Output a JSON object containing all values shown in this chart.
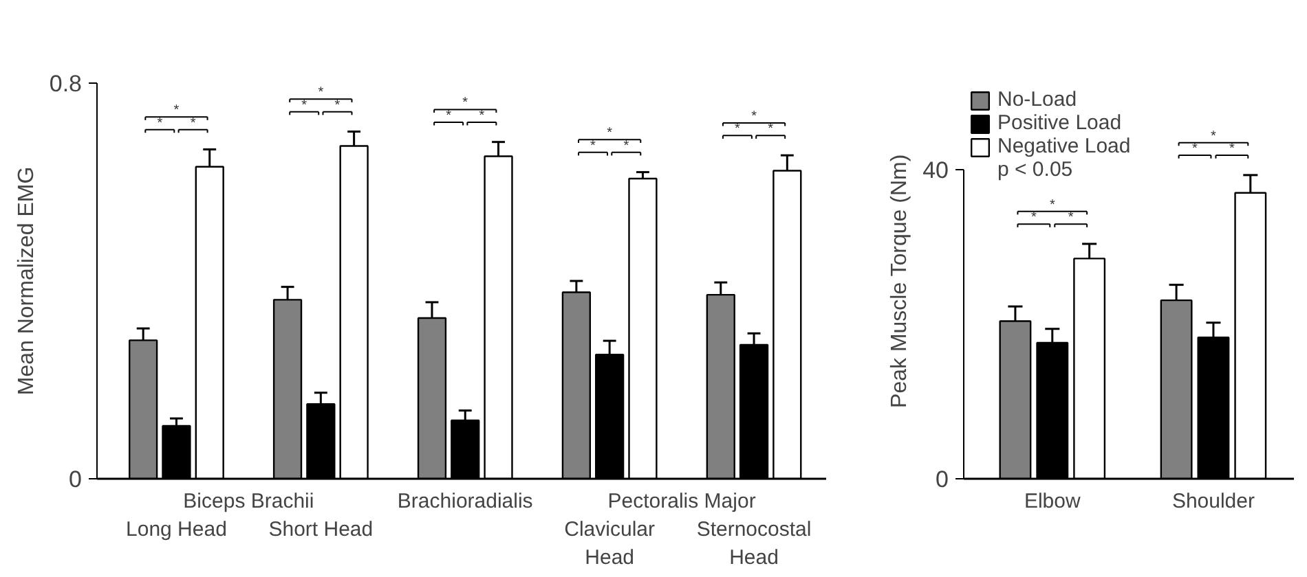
{
  "chart_data": [
    {
      "type": "bar",
      "ylabel": "Mean Normalized EMG",
      "categories": [
        "Long Head",
        "Short Head",
        "Brachioradialis",
        "Clavicular Head",
        "Sternocostal Head"
      ],
      "ylim": [
        0,
        0.8
      ],
      "yticks": [
        0,
        0.8
      ],
      "grid": false,
      "legend": false,
      "series": [
        {
          "color": "#808080",
          "values": [
            0.28,
            0.362,
            0.325,
            0.377,
            0.372
          ],
          "errors": [
            [
              0.28,
              0.304
            ],
            [
              0.362,
              0.388
            ],
            [
              0.325,
              0.357
            ],
            [
              0.377,
              0.4
            ],
            [
              0.372,
              0.397
            ]
          ]
        },
        {
          "color": "#000000",
          "values": [
            0.107,
            0.151,
            0.118,
            0.251,
            0.271
          ],
          "errors": [
            [
              0.107,
              0.122
            ],
            [
              0.151,
              0.174
            ],
            [
              0.118,
              0.138
            ],
            [
              0.251,
              0.279
            ],
            [
              0.271,
              0.294
            ]
          ]
        },
        {
          "color": "#ffffff",
          "values": [
            0.631,
            0.673,
            0.652,
            0.607,
            0.623
          ],
          "errors": [
            [
              0.631,
              0.666
            ],
            [
              0.673,
              0.702
            ],
            [
              0.652,
              0.681
            ],
            [
              0.607,
              0.62
            ],
            [
              0.623,
              0.654
            ]
          ]
        }
      ],
      "annotations": [
        "Biceps Brachii",
        "Pectoralis Major",
        "*",
        "*",
        "*",
        "*",
        "*",
        "*",
        "*",
        "*",
        "*",
        "*",
        "*",
        "*",
        "*",
        "*",
        "*"
      ]
    },
    {
      "type": "bar",
      "ylabel": "Peak Muscle Torque (Nm)",
      "categories": [
        "Elbow",
        "Shoulder"
      ],
      "ylim": [
        0,
        40
      ],
      "yticks": [
        0,
        40
      ],
      "grid": false,
      "legend": "top left",
      "series": [
        {
          "name": "No-Load",
          "color": "#808080",
          "values": [
            20.4,
            23.1
          ],
          "errors": [
            [
              20.4,
              22.3
            ],
            [
              23.1,
              25.1
            ]
          ]
        },
        {
          "name": "Positive Load",
          "color": "#000000",
          "values": [
            17.6,
            18.3
          ],
          "errors": [
            [
              17.6,
              19.4
            ],
            [
              18.3,
              20.2
            ]
          ]
        },
        {
          "name": "Negative Load",
          "color": "#ffffff",
          "values": [
            28.5,
            37.0
          ],
          "errors": [
            [
              28.5,
              30.4
            ],
            [
              37.0,
              39.3
            ]
          ]
        }
      ],
      "annotations": [
        "p < 0.05",
        "*",
        "*",
        "*",
        "*",
        "*",
        "*"
      ]
    }
  ]
}
